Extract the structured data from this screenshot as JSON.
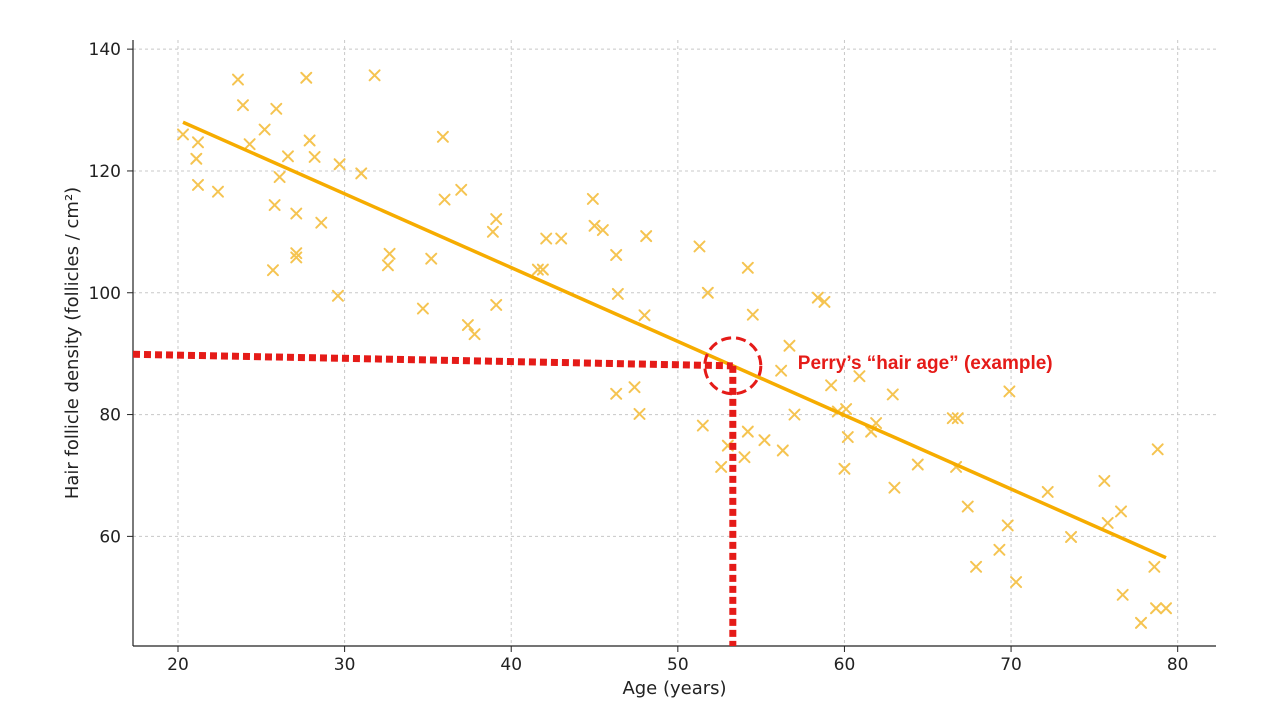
{
  "chart_data": {
    "type": "scatter",
    "title": "",
    "xlabel": "Age (years)",
    "ylabel": "Hair follicle density (follicles / cm²)",
    "xlim": [
      17.3,
      82.3
    ],
    "ylim": [
      42,
      141.5
    ],
    "xticks": [
      20,
      30,
      40,
      50,
      60,
      70,
      80
    ],
    "yticks": [
      60,
      80,
      100,
      120,
      140
    ],
    "grid": true,
    "series": [
      {
        "name": "",
        "marker": "x",
        "color": "#f5c451",
        "points": [
          [
            20.3,
            126
          ],
          [
            21.1,
            122
          ],
          [
            21.2,
            124.7
          ],
          [
            21.2,
            117.7
          ],
          [
            22.4,
            116.6
          ],
          [
            23.6,
            135
          ],
          [
            23.9,
            130.8
          ],
          [
            24.3,
            124.4
          ],
          [
            25.2,
            126.8
          ],
          [
            25.7,
            103.7
          ],
          [
            25.8,
            114.4
          ],
          [
            25.9,
            130.2
          ],
          [
            26.1,
            119
          ],
          [
            26.6,
            122.4
          ],
          [
            27.1,
            106.5
          ],
          [
            27.1,
            113
          ],
          [
            27.1,
            105.8
          ],
          [
            27.7,
            135.3
          ],
          [
            27.9,
            125
          ],
          [
            28.2,
            122.3
          ],
          [
            28.6,
            111.5
          ],
          [
            29.6,
            99.5
          ],
          [
            29.7,
            121.1
          ],
          [
            31,
            119.6
          ],
          [
            31.8,
            135.7
          ],
          [
            32.6,
            104.5
          ],
          [
            32.7,
            106.4
          ],
          [
            34.7,
            97.4
          ],
          [
            35.2,
            105.6
          ],
          [
            35.9,
            125.6
          ],
          [
            36,
            115.3
          ],
          [
            37,
            116.9
          ],
          [
            37.4,
            94.7
          ],
          [
            37.8,
            93.2
          ],
          [
            38.9,
            110
          ],
          [
            39.1,
            98
          ],
          [
            39.1,
            112.1
          ],
          [
            41.6,
            103.8
          ],
          [
            41.9,
            103.8
          ],
          [
            42.1,
            108.9
          ],
          [
            43,
            108.9
          ],
          [
            44.9,
            115.4
          ],
          [
            45,
            111
          ],
          [
            45.5,
            110.3
          ],
          [
            46.3,
            83.4
          ],
          [
            46.3,
            106.2
          ],
          [
            46.4,
            99.8
          ],
          [
            47.4,
            84.5
          ],
          [
            47.7,
            80.1
          ],
          [
            48,
            96.3
          ],
          [
            48.1,
            109.3
          ],
          [
            51.3,
            107.6
          ],
          [
            51.5,
            78.2
          ],
          [
            51.8,
            100
          ],
          [
            52.6,
            71.4
          ],
          [
            53,
            74.9
          ],
          [
            54,
            73
          ],
          [
            54.2,
            77.2
          ],
          [
            54.2,
            104.1
          ],
          [
            54.5,
            96.4
          ],
          [
            55.2,
            75.8
          ],
          [
            56.2,
            87.2
          ],
          [
            56.3,
            74.1
          ],
          [
            56.7,
            91.3
          ],
          [
            57,
            80
          ],
          [
            58.4,
            99.2
          ],
          [
            58.8,
            98.5
          ],
          [
            59.2,
            84.8
          ],
          [
            59.6,
            80.5
          ],
          [
            60,
            71.1
          ],
          [
            60.1,
            80.9
          ],
          [
            60.2,
            76.3
          ],
          [
            60.9,
            86.3
          ],
          [
            61.6,
            77.2
          ],
          [
            61.9,
            78.6
          ],
          [
            62.9,
            83.3
          ],
          [
            63,
            68
          ],
          [
            64.4,
            71.8
          ],
          [
            66.5,
            79.4
          ],
          [
            66.8,
            79.4
          ],
          [
            66.7,
            71.4
          ],
          [
            67.4,
            64.9
          ],
          [
            67.9,
            55
          ],
          [
            69.3,
            57.8
          ],
          [
            69.8,
            61.8
          ],
          [
            69.9,
            83.8
          ],
          [
            70.3,
            52.5
          ],
          [
            72.2,
            67.3
          ],
          [
            73.6,
            59.9
          ],
          [
            75.6,
            69.1
          ],
          [
            75.8,
            62.2
          ],
          [
            76.6,
            64.1
          ],
          [
            76.7,
            50.4
          ],
          [
            77.8,
            45.8
          ],
          [
            78.6,
            55
          ],
          [
            78.8,
            74.3
          ],
          [
            78.7,
            48.2
          ],
          [
            79.3,
            48.2
          ]
        ]
      }
    ],
    "fit_line": {
      "color": "#f6ac00",
      "x": [
        20.3,
        79.3
      ],
      "y": [
        128,
        56.5
      ]
    },
    "annotation": {
      "label": "Perry’s “hair age” (example)",
      "color": "#e51b18",
      "point": [
        53.3,
        88
      ],
      "line_start_y": 89.9,
      "text_anchor": [
        57.2,
        88.6
      ]
    }
  }
}
